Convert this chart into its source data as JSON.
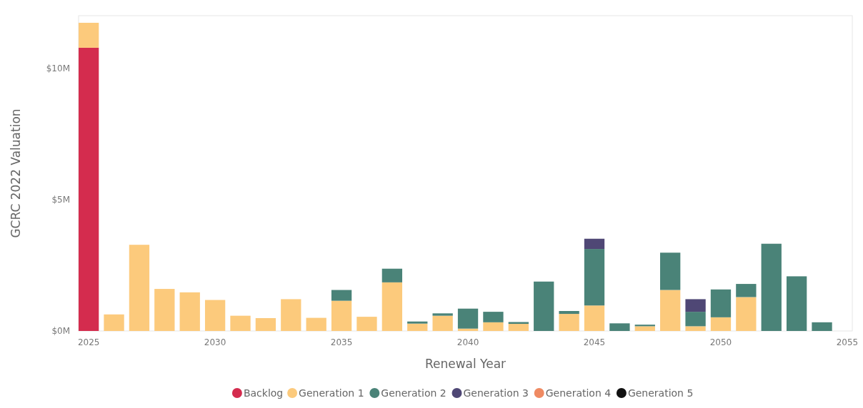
{
  "chart_data": {
    "type": "bar",
    "stacked": true,
    "xlabel": "Renewal Year",
    "ylabel": "GCRC 2022 Valuation",
    "x": [
      2025,
      2026,
      2027,
      2028,
      2029,
      2030,
      2031,
      2032,
      2033,
      2034,
      2035,
      2036,
      2037,
      2038,
      2039,
      2040,
      2041,
      2042,
      2043,
      2044,
      2045,
      2046,
      2047,
      2048,
      2049,
      2050,
      2051,
      2052,
      2053,
      2054
    ],
    "series": [
      {
        "name": "Backlog",
        "color": "#d42c4e",
        "values": [
          10.78,
          null,
          null,
          null,
          null,
          null,
          null,
          null,
          null,
          null,
          null,
          null,
          null,
          null,
          null,
          null,
          null,
          null,
          null,
          null,
          null,
          null,
          null,
          null,
          null,
          null,
          null,
          null,
          null,
          null
        ]
      },
      {
        "name": "Generation 1",
        "color": "#fcca7c",
        "values": [
          0.95,
          0.63,
          3.28,
          1.6,
          1.47,
          1.18,
          0.58,
          0.49,
          1.21,
          0.5,
          1.15,
          0.54,
          1.85,
          0.28,
          0.58,
          0.09,
          0.33,
          0.27,
          null,
          0.65,
          0.97,
          null,
          0.18,
          1.56,
          0.18,
          0.52,
          1.29,
          null,
          null,
          null
        ]
      },
      {
        "name": "Generation 2",
        "color": "#4a8378",
        "values": [
          null,
          null,
          null,
          null,
          null,
          null,
          null,
          null,
          null,
          null,
          0.41,
          null,
          0.52,
          0.08,
          0.09,
          0.76,
          0.4,
          0.07,
          1.88,
          0.11,
          2.15,
          0.29,
          0.06,
          1.42,
          0.55,
          1.06,
          0.5,
          3.32,
          2.08,
          0.33
        ]
      },
      {
        "name": "Generation 3",
        "color": "#4f4775",
        "values": [
          null,
          null,
          null,
          null,
          null,
          null,
          null,
          null,
          null,
          null,
          null,
          null,
          null,
          null,
          null,
          null,
          null,
          null,
          null,
          null,
          0.39,
          null,
          null,
          null,
          0.48,
          null,
          null,
          null,
          null,
          null
        ]
      },
      {
        "name": "Generation 4",
        "color": "#ef8a62",
        "values": [
          null,
          null,
          null,
          null,
          null,
          null,
          null,
          null,
          null,
          null,
          null,
          null,
          null,
          null,
          null,
          null,
          null,
          null,
          null,
          null,
          null,
          null,
          null,
          null,
          null,
          null,
          null,
          null,
          null,
          null
        ]
      },
      {
        "name": "Generation 5",
        "color": "#111111",
        "values": [
          null,
          null,
          null,
          null,
          null,
          null,
          null,
          null,
          null,
          null,
          null,
          null,
          null,
          null,
          null,
          null,
          null,
          null,
          null,
          null,
          null,
          null,
          null,
          null,
          null,
          null,
          null,
          null,
          null,
          null
        ]
      }
    ],
    "xlim": [
      2024.6,
      2055.2
    ],
    "xticks": [
      2025,
      2030,
      2035,
      2040,
      2045,
      2050,
      2055
    ],
    "ylim": [
      0,
      12
    ],
    "yticks": [
      {
        "value": 0,
        "label": "$0M"
      },
      {
        "value": 5,
        "label": "$5M"
      },
      {
        "value": 10,
        "label": "$10M"
      }
    ],
    "grid": false,
    "legend": "bottom"
  }
}
